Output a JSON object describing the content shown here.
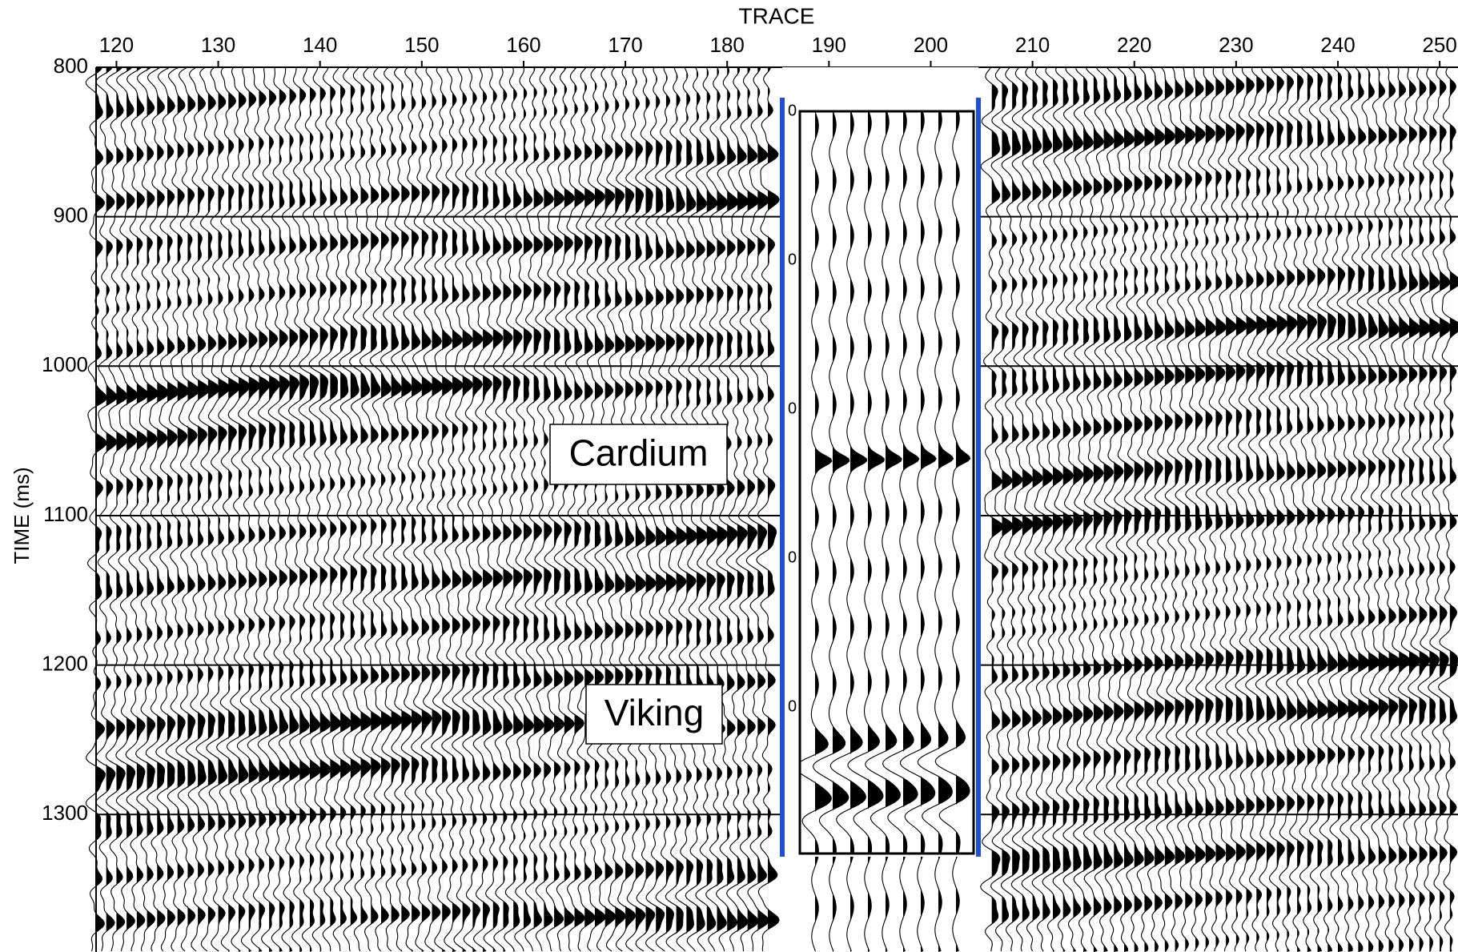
{
  "chart_data": {
    "type": "seismic",
    "title": "TRACE",
    "y_label": "TIME (ms)",
    "xlim": [
      118,
      251.8
    ],
    "xticks": [
      120,
      130,
      140,
      150,
      160,
      170,
      180,
      190,
      200,
      210,
      220,
      230,
      240,
      250
    ],
    "ylim": [
      800,
      1392
    ],
    "yticks": [
      800,
      900,
      1000,
      1100,
      1200,
      1300
    ],
    "grid": true,
    "annotations": [
      "Cardium",
      "Viking"
    ],
    "inset": {
      "tick_labels": [
        "0",
        "0",
        "0",
        "0",
        "0"
      ],
      "color": "#1f4fd6"
    }
  }
}
